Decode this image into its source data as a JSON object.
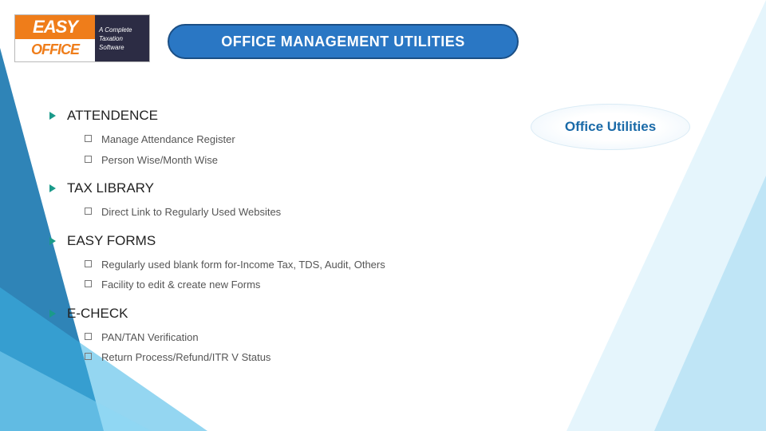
{
  "logo": {
    "line1": "EASY",
    "line2": "OFFICE",
    "tag1": "A Complete",
    "tag2": "Taxation",
    "tag3": "Software",
    "orange": "#ef7d1a",
    "navy": "#2c2c44"
  },
  "title": {
    "text": "OFFICE MANAGEMENT UTILITIES",
    "bg": "#2a77c4",
    "border": "#1b4f85",
    "color": "#ffffff",
    "fontsize": 18
  },
  "callout": {
    "text": "Office Utilities",
    "color": "#1a6aa8",
    "fontsize": 17
  },
  "bullet": {
    "arrow_color": "#1a9a8a",
    "box_border": "#777777"
  },
  "sections": [
    {
      "heading": "ATTENDENCE",
      "items": [
        "Manage Attendance Register",
        "Person Wise/Month Wise"
      ]
    },
    {
      "heading": "TAX LIBRARY",
      "items": [
        "Direct Link to Regularly Used Websites"
      ]
    },
    {
      "heading": "EASY FORMS",
      "items": [
        "Regularly used blank form for-Income Tax, TDS, Audit, Others",
        "Facility to edit & create new Forms"
      ]
    },
    {
      "heading": "E-CHECK",
      "items": [
        "PAN/TAN Verification",
        "Return Process/Refund/ITR V Status"
      ]
    }
  ],
  "decor": {
    "tri_dark": "rgba(10,110,170,0.85)",
    "tri_mid": "rgba(60,180,230,0.55)",
    "tri_light": "rgba(140,215,245,0.5)",
    "tri_r1": "rgba(180,225,245,0.35)",
    "tri_r2": "rgba(120,200,235,0.35)"
  }
}
